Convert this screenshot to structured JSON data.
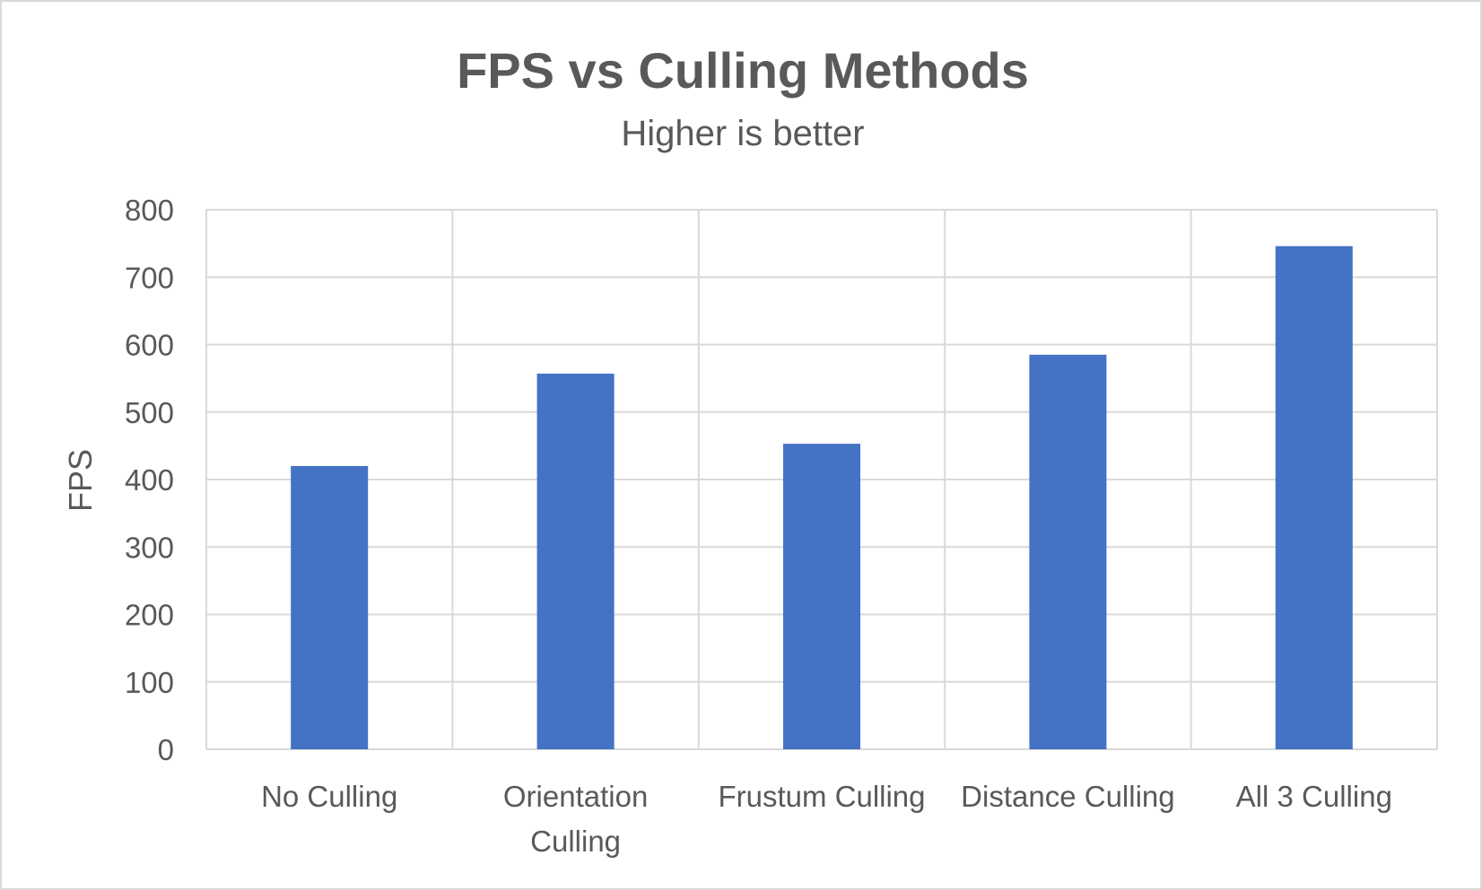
{
  "chart_data": {
    "type": "bar",
    "title": "FPS vs Culling Methods",
    "subtitle": "Higher is better",
    "xlabel": "",
    "ylabel": "FPS",
    "categories": [
      [
        "No Culling"
      ],
      [
        "Orientation",
        "Culling"
      ],
      [
        "Frustum Culling"
      ],
      [
        "Distance Culling"
      ],
      [
        "All 3 Culling"
      ]
    ],
    "values": [
      420,
      557,
      453,
      585,
      746
    ],
    "ylim": [
      0,
      800
    ],
    "yticks": [
      0,
      100,
      200,
      300,
      400,
      500,
      600,
      700,
      800
    ],
    "grid": true,
    "legend": "none",
    "colors": {
      "bar": "#4472c4",
      "grid": "#d9d9d9",
      "text": "#595959",
      "frame": "#d9d9d9"
    }
  }
}
